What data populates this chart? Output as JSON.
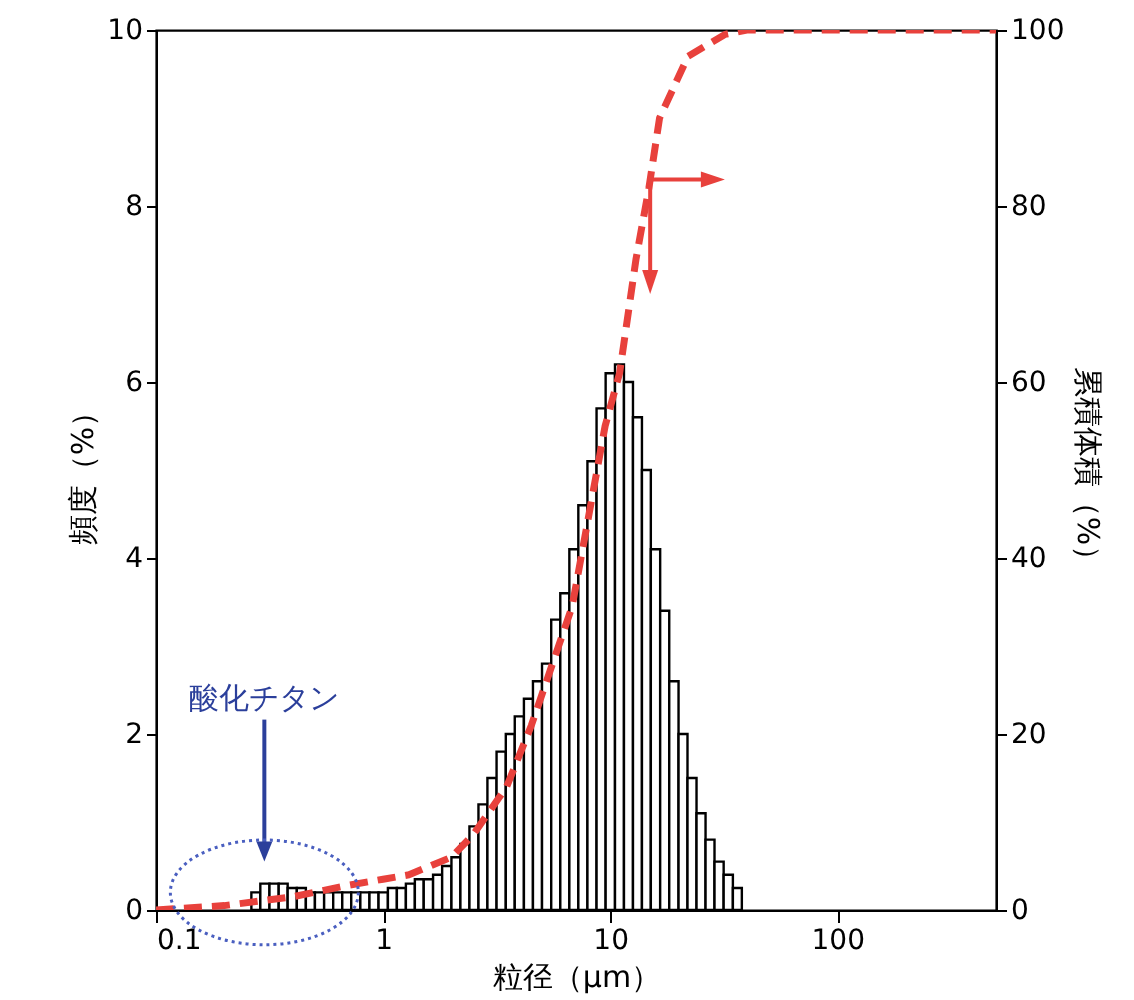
{
  "chart_data": {
    "type": "histogram",
    "xlabel": "粒径（μm）",
    "ylabel": "頻度（%）",
    "y2label": "累積体積（%）",
    "log": "x",
    "xlim": [
      0.1,
      500
    ],
    "xticks": [
      0.1,
      1,
      10,
      100
    ],
    "ylim": [
      0,
      10
    ],
    "yticks": [
      0,
      2,
      4,
      6,
      8,
      10
    ],
    "y2lim": [
      0,
      100
    ],
    "y2ticks": [
      0,
      20,
      40,
      60,
      80,
      100
    ],
    "grid": false,
    "annotations": [
      "酸化チタン"
    ],
    "series": [
      {
        "color": "#ffffff",
        "bins": [
          0.263,
          0.288,
          0.316,
          0.347,
          0.38,
          0.417,
          0.457,
          0.501,
          0.55,
          0.603,
          0.661,
          0.724,
          0.794,
          0.871,
          0.955,
          1.05,
          1.15,
          1.26,
          1.38,
          1.51,
          1.66,
          1.82,
          2.0,
          2.19,
          2.4,
          2.63,
          2.88,
          3.16,
          3.47,
          3.8,
          4.17,
          4.57,
          5.01,
          5.5,
          6.03,
          6.61,
          7.24,
          7.94,
          8.71,
          9.55,
          10.5,
          11.5,
          12.6,
          13.8,
          15.1,
          16.6,
          18.2,
          20.0,
          21.9,
          24.0,
          26.3,
          28.8,
          31.6,
          34.7,
          38.0
        ],
        "values": [
          0.2,
          0.3,
          0.3,
          0.3,
          0.25,
          0.25,
          0.2,
          0.2,
          0.2,
          0.2,
          0.2,
          0.2,
          0.2,
          0.2,
          0.2,
          0.25,
          0.25,
          0.3,
          0.35,
          0.35,
          0.4,
          0.5,
          0.6,
          0.75,
          0.95,
          1.2,
          1.5,
          1.8,
          2.0,
          2.2,
          2.4,
          2.6,
          2.8,
          3.3,
          3.6,
          4.1,
          4.6,
          5.1,
          5.7,
          6.1,
          6.2,
          6.0,
          5.6,
          5.0,
          4.1,
          3.4,
          2.6,
          2.0,
          1.5,
          1.1,
          0.8,
          0.55,
          0.4,
          0.25
        ]
      },
      {
        "type": "line",
        "axis": "y2",
        "color": "#e8413c",
        "line_style": "dashed",
        "marker": "none",
        "x": [
          0.1,
          0.2,
          0.4,
          0.7,
          1,
          1.3,
          2,
          2.5,
          3.5,
          4.5,
          6.8,
          9.5,
          11,
          13,
          14.8,
          16.5,
          22,
          32,
          40,
          500
        ],
        "values": [
          0,
          0.5,
          1.5,
          2.8,
          3.5,
          4,
          6,
          8.6,
          14,
          21,
          34.5,
          55,
          61,
          74,
          82,
          90,
          97,
          99.5,
          100,
          100
        ]
      }
    ]
  }
}
